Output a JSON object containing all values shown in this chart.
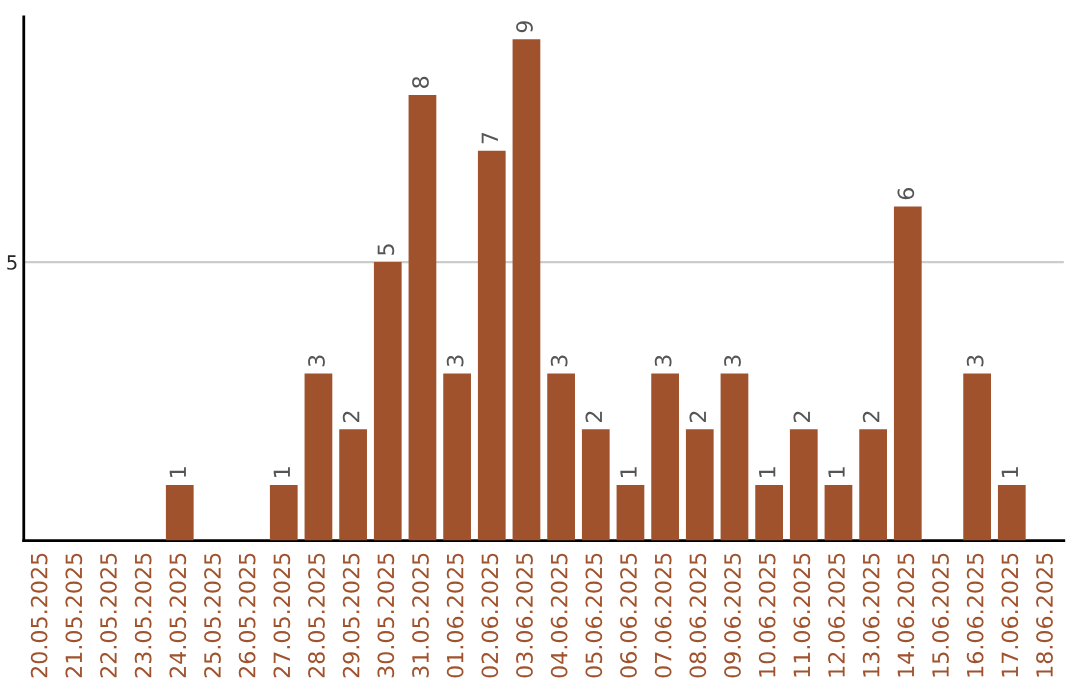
{
  "chart_data": {
    "type": "bar",
    "categories": [
      "20.05.2025",
      "21.05.2025",
      "22.05.2025",
      "23.05.2025",
      "24.05.2025",
      "25.05.2025",
      "26.05.2025",
      "27.05.2025",
      "28.05.2025",
      "29.05.2025",
      "30.05.2025",
      "31.05.2025",
      "01.06.2025",
      "02.06.2025",
      "03.06.2025",
      "04.06.2025",
      "05.06.2025",
      "06.06.2025",
      "07.06.2025",
      "08.06.2025",
      "09.06.2025",
      "10.06.2025",
      "11.06.2025",
      "12.06.2025",
      "13.06.2025",
      "14.06.2025",
      "15.06.2025",
      "16.06.2025",
      "17.06.2025",
      "18.06.2025"
    ],
    "values": [
      null,
      null,
      null,
      null,
      1,
      null,
      null,
      1,
      3,
      2,
      5,
      8,
      3,
      7,
      9,
      3,
      2,
      1,
      3,
      2,
      3,
      1,
      2,
      1,
      2,
      6,
      null,
      3,
      1,
      null
    ],
    "value_labels": [
      null,
      null,
      null,
      null,
      "1",
      null,
      null,
      "1",
      "3",
      "2",
      "5",
      "8",
      "3",
      "7",
      "9",
      "3",
      "2",
      "1",
      "3",
      "2",
      "3",
      "1",
      "2",
      "1",
      "2",
      "6",
      null,
      "3",
      "1",
      null
    ],
    "color": "#a0522d",
    "ylim": [
      0,
      9.4
    ],
    "yticks": [
      5
    ],
    "grid": "y"
  }
}
